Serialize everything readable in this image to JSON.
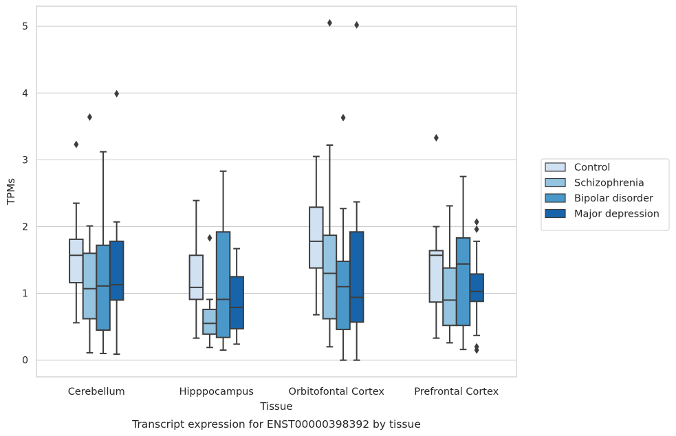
{
  "chart_data": {
    "type": "boxplot",
    "caption": "Transcript expression for ENST00000398392 by tissue",
    "xlabel": "Tissue",
    "ylabel": "TPMs",
    "ylim": [
      -0.25,
      5.3
    ],
    "yticks": [
      0,
      1,
      2,
      3,
      4,
      5
    ],
    "grid": "horizontal",
    "legend_position": "right",
    "categories": [
      "Cerebellum",
      "Hipppocampus",
      "Orbitofontal Cortex",
      "Prefrontal Cortex"
    ],
    "series": [
      {
        "name": "Control",
        "color": "#d0e1f2",
        "boxes": [
          {
            "whisker_low": 0.56,
            "q1": 1.16,
            "median": 1.57,
            "q3": 1.81,
            "whisker_high": 2.35,
            "outliers": [
              3.23
            ]
          },
          {
            "whisker_low": 0.33,
            "q1": 0.91,
            "median": 1.09,
            "q3": 1.57,
            "whisker_high": 2.39,
            "outliers": []
          },
          {
            "whisker_low": 0.68,
            "q1": 1.38,
            "median": 1.78,
            "q3": 2.29,
            "whisker_high": 3.05,
            "outliers": []
          },
          {
            "whisker_low": 0.33,
            "q1": 0.87,
            "median": 1.57,
            "q3": 1.64,
            "whisker_high": 2.0,
            "outliers": [
              3.33
            ]
          }
        ]
      },
      {
        "name": "Schizophrenia",
        "color": "#94c4df",
        "boxes": [
          {
            "whisker_low": 0.11,
            "q1": 0.62,
            "median": 1.07,
            "q3": 1.6,
            "whisker_high": 2.01,
            "outliers": [
              3.64
            ]
          },
          {
            "whisker_low": 0.19,
            "q1": 0.39,
            "median": 0.55,
            "q3": 0.76,
            "whisker_high": 0.91,
            "outliers": [
              1.83
            ]
          },
          {
            "whisker_low": 0.2,
            "q1": 0.62,
            "median": 1.3,
            "q3": 1.87,
            "whisker_high": 3.22,
            "outliers": [
              5.05
            ]
          },
          {
            "whisker_low": 0.26,
            "q1": 0.52,
            "median": 0.9,
            "q3": 1.38,
            "whisker_high": 2.31,
            "outliers": []
          }
        ]
      },
      {
        "name": "Bipolar disorder",
        "color": "#4a98c9",
        "boxes": [
          {
            "whisker_low": 0.1,
            "q1": 0.45,
            "median": 1.11,
            "q3": 1.72,
            "whisker_high": 3.12,
            "outliers": []
          },
          {
            "whisker_low": 0.15,
            "q1": 0.34,
            "median": 0.91,
            "q3": 1.92,
            "whisker_high": 2.83,
            "outliers": []
          },
          {
            "whisker_low": 0.0,
            "q1": 0.46,
            "median": 1.1,
            "q3": 1.48,
            "whisker_high": 2.27,
            "outliers": [
              3.63
            ]
          },
          {
            "whisker_low": 0.16,
            "q1": 0.52,
            "median": 1.44,
            "q3": 1.83,
            "whisker_high": 2.75,
            "outliers": []
          }
        ]
      },
      {
        "name": "Major depression",
        "color": "#1764ab",
        "boxes": [
          {
            "whisker_low": 0.09,
            "q1": 0.9,
            "median": 1.13,
            "q3": 1.78,
            "whisker_high": 2.07,
            "outliers": [
              3.99
            ]
          },
          {
            "whisker_low": 0.24,
            "q1": 0.47,
            "median": 0.79,
            "q3": 1.25,
            "whisker_high": 1.67,
            "outliers": []
          },
          {
            "whisker_low": 0.0,
            "q1": 0.57,
            "median": 0.94,
            "q3": 1.92,
            "whisker_high": 2.37,
            "outliers": [
              5.02
            ]
          },
          {
            "whisker_low": 0.37,
            "q1": 0.88,
            "median": 1.03,
            "q3": 1.29,
            "whisker_high": 1.78,
            "outliers": [
              0.15,
              0.2,
              1.96,
              2.07
            ]
          }
        ]
      }
    ]
  }
}
